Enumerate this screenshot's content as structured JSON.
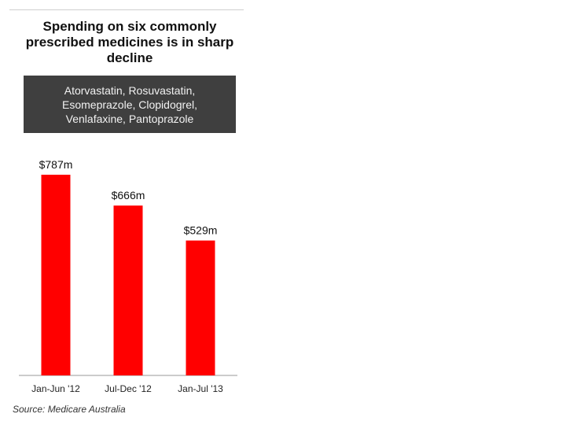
{
  "chart_data": {
    "type": "bar",
    "title": "Spending on six commonly prescribed medicines is in sharp decline",
    "subtitle": "Atorvastatin, Rosuvastatin, Esomeprazole, Clopidogrel, Venlafaxine, Pantoprazole",
    "categories": [
      "Jan-Jun '12",
      "Jul-Dec '12",
      "Jan-Jul '13"
    ],
    "values": [
      787,
      666,
      529
    ],
    "value_labels": [
      "$787m",
      "$666m",
      "$529m"
    ],
    "xlabel": "",
    "ylabel": "",
    "ylim": [
      0,
      787
    ],
    "grid": false,
    "bar_color": "#ff0000",
    "source": "Source: Medicare Australia"
  }
}
